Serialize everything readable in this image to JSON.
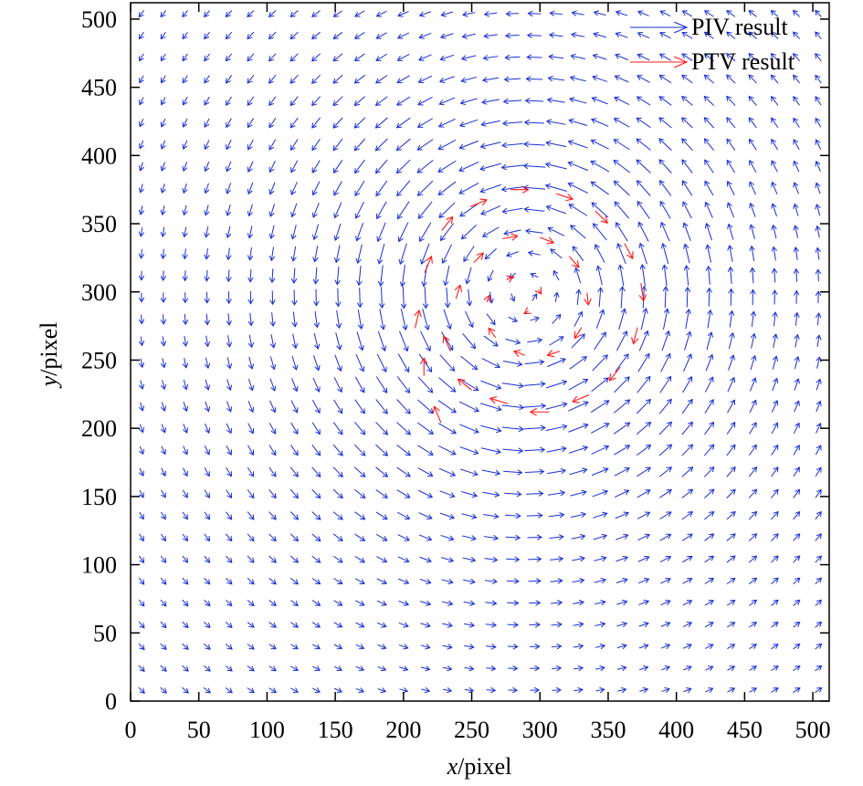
{
  "chart_data": {
    "type": "quiver",
    "xlabel_italic": "x",
    "xlabel_rest": "/pixel",
    "ylabel_italic": "y",
    "ylabel_rest": "/pixel",
    "xlim": [
      0,
      512
    ],
    "ylim": [
      0,
      512
    ],
    "xticks": [
      "0",
      "50",
      "100",
      "150",
      "200",
      "250",
      "300",
      "350",
      "400",
      "450",
      "500"
    ],
    "yticks": [
      "0",
      "50",
      "100",
      "150",
      "200",
      "250",
      "300",
      "350",
      "400",
      "450",
      "500"
    ],
    "grid": false,
    "legend_position": "top-right",
    "vortex_center": [
      290,
      300
    ],
    "series": [
      {
        "name": "PIV result",
        "color": "#1a2fd6",
        "grid_spacing": 16,
        "x_start": 8,
        "y_start": 8,
        "count": 32,
        "max_arrow_length": 16,
        "field": "Lamb-Oseen-like vortex, counterclockwise, core radius 75"
      },
      {
        "name": "PTV result",
        "color": "#ff1a1a",
        "points": [
          [
            225,
            210,
            -5,
            12
          ],
          [
            215,
            245,
            0,
            13
          ],
          [
            210,
            280,
            3,
            13
          ],
          [
            218,
            320,
            5,
            12
          ],
          [
            232,
            350,
            8,
            10
          ],
          [
            255,
            365,
            12,
            5
          ],
          [
            285,
            375,
            13,
            0
          ],
          [
            318,
            370,
            12,
            -4
          ],
          [
            345,
            355,
            9,
            -9
          ],
          [
            365,
            330,
            6,
            -11
          ],
          [
            375,
            300,
            2,
            -13
          ],
          [
            370,
            268,
            -3,
            -12
          ],
          [
            355,
            240,
            -8,
            -10
          ],
          [
            330,
            222,
            -12,
            -5
          ],
          [
            300,
            212,
            -14,
            0
          ],
          [
            270,
            220,
            -13,
            4
          ],
          [
            245,
            232,
            -10,
            8
          ],
          [
            232,
            262,
            -5,
            11
          ],
          [
            240,
            300,
            3,
            10
          ],
          [
            255,
            325,
            7,
            7
          ],
          [
            278,
            340,
            11,
            2
          ],
          [
            305,
            338,
            10,
            -4
          ],
          [
            325,
            322,
            7,
            -8
          ],
          [
            335,
            295,
            1,
            -9
          ],
          [
            328,
            270,
            -5,
            -8
          ],
          [
            310,
            255,
            -9,
            -3
          ],
          [
            285,
            255,
            -8,
            3
          ],
          [
            265,
            270,
            -5,
            7
          ],
          [
            262,
            295,
            2,
            5
          ],
          [
            278,
            310,
            5,
            2
          ],
          [
            300,
            300,
            2,
            -3
          ],
          [
            290,
            285,
            -3,
            -2
          ]
        ]
      }
    ]
  }
}
